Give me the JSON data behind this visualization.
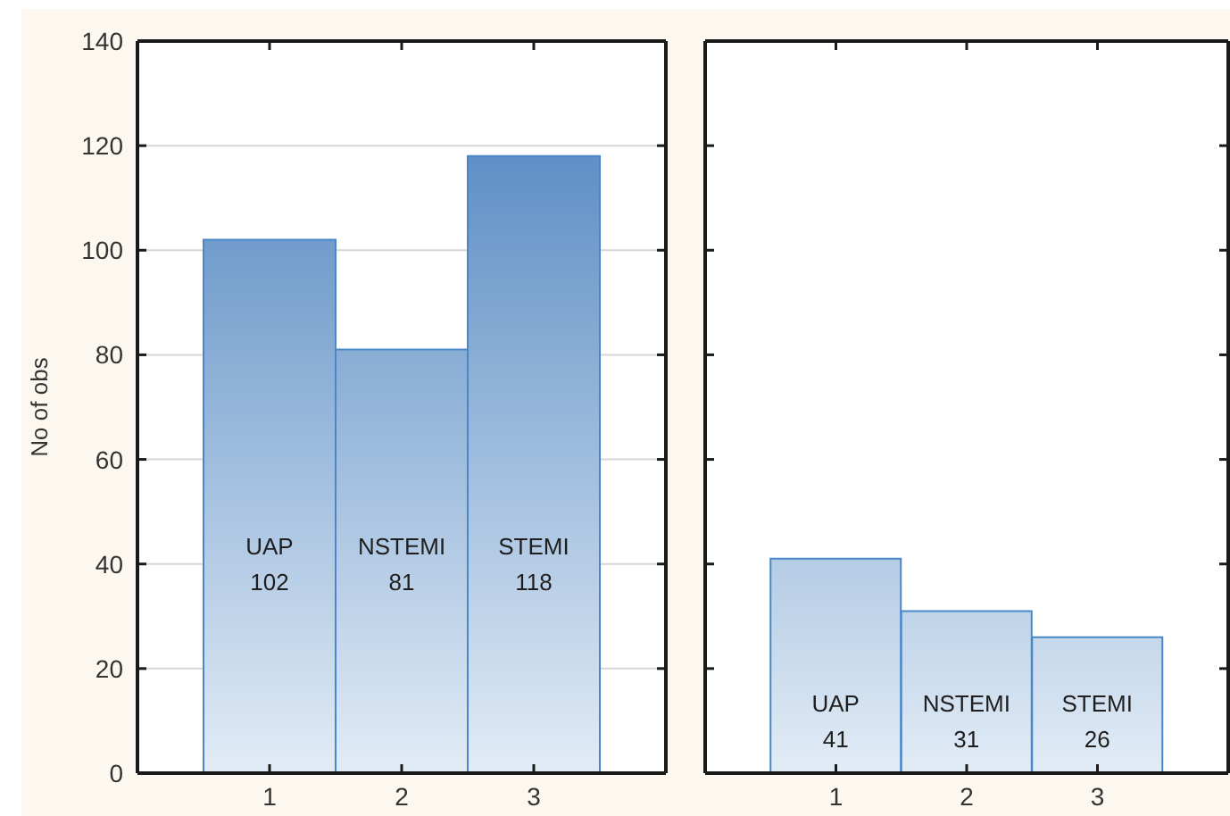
{
  "chart_data": [
    {
      "type": "bar",
      "ylabel": "No of obs",
      "categories": [
        "1",
        "2",
        "3"
      ],
      "values": [
        102,
        81,
        118
      ],
      "value_labels": [
        "UAP\n102",
        "NSTEMI\n81",
        "STEMI\n118"
      ],
      "color": "#4a86c8",
      "ylim": [
        0,
        140
      ],
      "yticks": [
        0,
        20,
        40,
        60,
        80,
        100,
        120,
        140
      ],
      "grid": "y"
    },
    {
      "type": "bar",
      "categories": [
        "1",
        "2",
        "3"
      ],
      "values": [
        41,
        31,
        26
      ],
      "value_labels": [
        "UAP\n41",
        "NSTEMI\n31",
        "STEMI\n26"
      ],
      "color": "#4a86c8",
      "ylim": [
        0,
        140
      ],
      "yticks": [
        0,
        20,
        40,
        60,
        80,
        100,
        120,
        140
      ],
      "grid": "y",
      "tick_labels": "x"
    }
  ]
}
